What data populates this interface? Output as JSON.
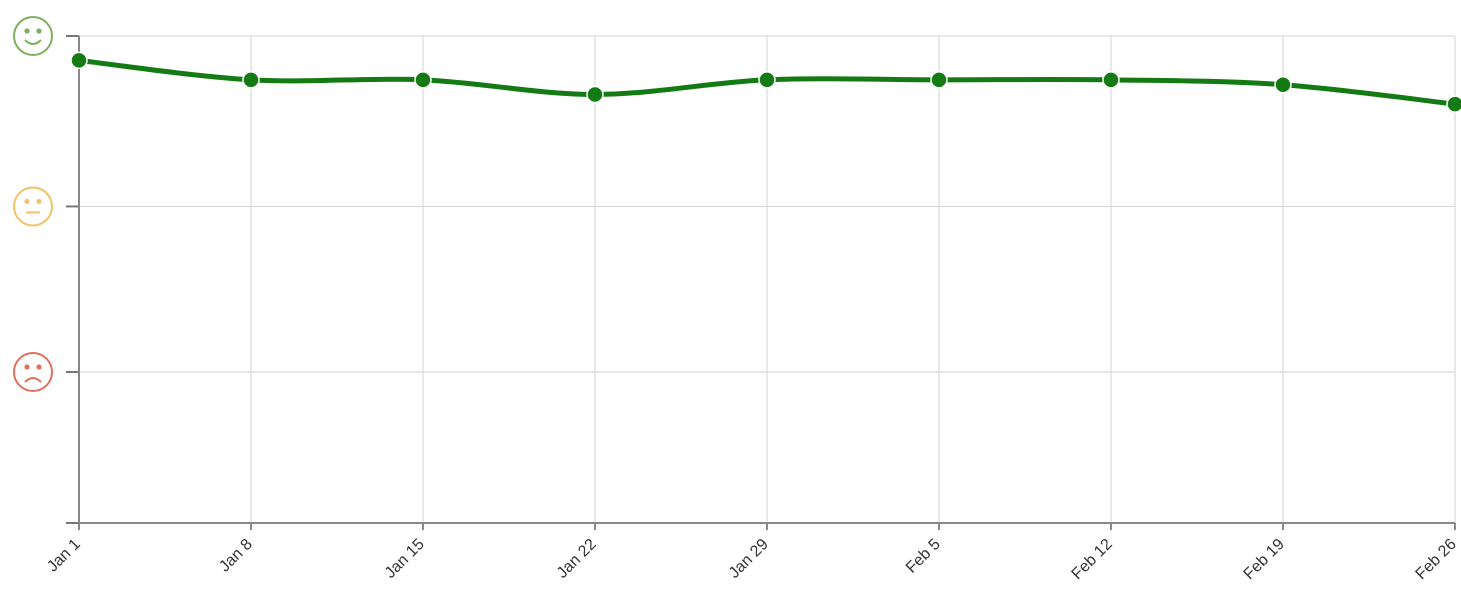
{
  "chart_data": {
    "type": "line",
    "categories": [
      "Jan 1",
      "Jan 8",
      "Jan 15",
      "Jan 22",
      "Jan 29",
      "Feb 5",
      "Feb 12",
      "Feb 19",
      "Feb 26"
    ],
    "series": [
      {
        "color": "#147a14",
        "values": [
          95,
          91,
          91,
          88,
          91,
          91,
          91,
          90,
          86
        ]
      }
    ],
    "ylim": [
      0,
      100
    ],
    "yticks": [
      0,
      31,
      65,
      100
    ],
    "grid": true
  }
}
